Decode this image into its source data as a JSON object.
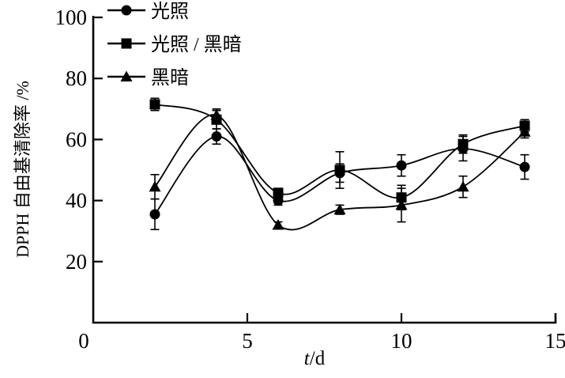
{
  "chart_data": {
    "type": "line",
    "title": "",
    "xlabel_variable": "t",
    "xlabel_unit": "/d",
    "ylabel": "DPPH 自由基清除率 /%",
    "xlim": [
      0,
      15
    ],
    "ylim": [
      0,
      100
    ],
    "x_ticks": [
      0,
      5,
      10,
      15
    ],
    "y_ticks": [
      20,
      40,
      60,
      80,
      100
    ],
    "grid": false,
    "legend_position": "top-left",
    "x": [
      2,
      4,
      6,
      8,
      10,
      12,
      14
    ],
    "series": [
      {
        "name": "光照",
        "marker": "circle",
        "values": [
          35.5,
          61,
          40,
          49,
          51.5,
          57,
          51
        ],
        "errors": [
          5,
          2.5,
          1.5,
          3,
          3.5,
          4,
          4
        ]
      },
      {
        "name": "光照 / 黑暗",
        "marker": "square",
        "values": [
          71.5,
          66.5,
          42.5,
          50,
          41,
          58.5,
          64.5
        ],
        "errors": [
          2,
          3,
          1.5,
          6,
          4,
          3,
          2
        ]
      },
      {
        "name": "黑暗",
        "marker": "triangle",
        "values": [
          44.5,
          68,
          32,
          37,
          38.5,
          44.5,
          62.5
        ],
        "errors": [
          4,
          2,
          1,
          1.5,
          5.5,
          3.5,
          2
        ]
      }
    ],
    "colors": {
      "line": "#000000",
      "background": "#ffffff"
    }
  }
}
